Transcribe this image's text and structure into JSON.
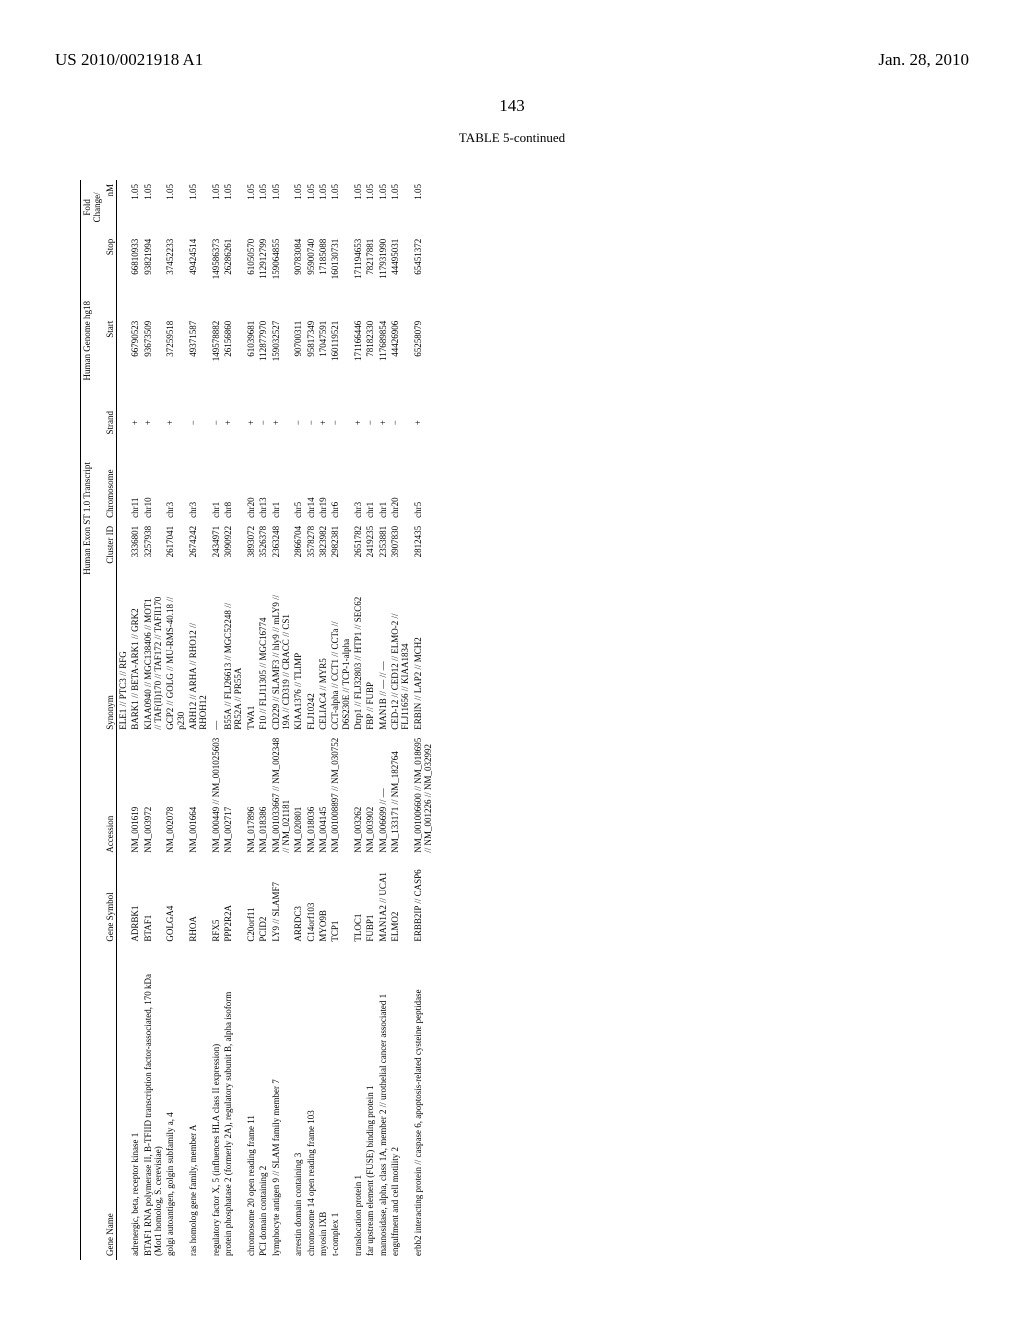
{
  "header": {
    "left": "US 2010/0021918 A1",
    "right": "Jan. 28, 2010"
  },
  "page_number": "143",
  "table_caption": "TABLE 5-continued",
  "columns": {
    "geneName": "Gene Name",
    "geneSymbol": "Gene Symbol",
    "accession": "Accession",
    "synonym": "Synonym",
    "clusterId": "Cluster ID",
    "chromosome": "Chromosome",
    "strand": "Strand",
    "start": "Start",
    "stop": "Stop",
    "foldChange": "nM"
  },
  "group_headers": {
    "human": "Human Exon ST 1.0 Transcript",
    "genome": "Human Genome hg18",
    "fold": "Fold Change/"
  },
  "rows": [
    {
      "geneName": "",
      "geneSymbol": "",
      "accession": "",
      "synonym": "ELE1 // PTC3 // RFG",
      "clusterId": "",
      "chromosome": "",
      "strand": "",
      "start": "",
      "stop": "",
      "foldChange": ""
    },
    {
      "geneName": "adrenergic, beta, receptor kinase 1",
      "geneSymbol": "ADRBK1",
      "accession": "NM_001619",
      "synonym": "BARK1 // BETA-ARK1 // GRK2",
      "clusterId": "3336801",
      "chromosome": "chr11",
      "strand": "+",
      "start": "66790523",
      "stop": "66810933",
      "foldChange": "1.05"
    },
    {
      "geneName": "BTAF1 RNA polymerase II, B-TFIID transcription factor-associated, 170 kDa (Mot1 homolog, S. cerevisiae)",
      "geneSymbol": "BTAF1",
      "accession": "NM_003972",
      "synonym": "KIAA0940 // MGC138406 // MOT1 // TAF(II)170 // TAF172 // TAFII170",
      "clusterId": "3257938",
      "chromosome": "chr10",
      "strand": "+",
      "start": "93673509",
      "stop": "93821994",
      "foldChange": "1.05"
    },
    {
      "geneName": "golgi autoantigen, golgin subfamily a, 4",
      "geneSymbol": "GOLGA4",
      "accession": "NM_002078",
      "synonym": "GCP2 // GOLG // MU-RMS-40.18 // p230",
      "clusterId": "2617041",
      "chromosome": "chr3",
      "strand": "+",
      "start": "37259518",
      "stop": "37452233",
      "foldChange": "1.05"
    },
    {
      "geneName": "ras homolog gene family, member A",
      "geneSymbol": "RHOA",
      "accession": "NM_001664",
      "synonym": "ARH12 // ARHA // RHO12 // RHOH12",
      "clusterId": "2674242",
      "chromosome": "chr3",
      "strand": "−",
      "start": "49371587",
      "stop": "49424514",
      "foldChange": "1.05"
    },
    {
      "geneName": "regulatory factor X, 5 (influences HLA class II expression)",
      "geneSymbol": "RFX5",
      "accession": "NM_000449 // NM_001025603",
      "synonym": "—",
      "clusterId": "2434971",
      "chromosome": "chr1",
      "strand": "−",
      "start": "149578882",
      "stop": "149586373",
      "foldChange": "1.05"
    },
    {
      "geneName": "protein phosphatase 2 (formerly 2A), regulatory subunit B, alpha isoform",
      "geneSymbol": "PPP2R2A",
      "accession": "NM_002717",
      "synonym": "B55A // FLJ26613 // MGC52248 // PR52A // PR55A",
      "clusterId": "3090922",
      "chromosome": "chr8",
      "strand": "+",
      "start": "26156860",
      "stop": "26286261",
      "foldChange": "1.05"
    },
    {
      "geneName": "chromosome 20 open reading frame 11",
      "geneSymbol": "C20orf11",
      "accession": "NM_017896",
      "synonym": "TWA1",
      "clusterId": "3893072",
      "chromosome": "chr20",
      "strand": "+",
      "start": "61039681",
      "stop": "61050570",
      "foldChange": "1.05"
    },
    {
      "geneName": "PCI domain containing 2",
      "geneSymbol": "PCID2",
      "accession": "NM_018386",
      "synonym": "F10 // FLJ11305 // MGC16774",
      "clusterId": "3526378",
      "chromosome": "chr13",
      "strand": "−",
      "start": "112877970",
      "stop": "112912799",
      "foldChange": "1.05"
    },
    {
      "geneName": "lymphocyte antigen 9 // SLAM family member 7",
      "geneSymbol": "LY9 // SLAMF7",
      "accession": "NM_001033667 // NM_002348 // NM_021181",
      "synonym": "CD229 // SLAMF3 // hly9 // mLY9 // 19A // CD319 // CRACC // CS1",
      "clusterId": "2363248",
      "chromosome": "chr1",
      "strand": "+",
      "start": "159032527",
      "stop": "159064855",
      "foldChange": "1.05"
    },
    {
      "geneName": "arrestin domain containing 3",
      "geneSymbol": "ARRDC3",
      "accession": "NM_020801",
      "synonym": "KIAA1376 // TLIMP",
      "clusterId": "2866704",
      "chromosome": "chr5",
      "strand": "−",
      "start": "90700311",
      "stop": "90783084",
      "foldChange": "1.05"
    },
    {
      "geneName": "chromosome 14 open reading frame 103",
      "geneSymbol": "C14orf103",
      "accession": "NM_018036",
      "synonym": "FLJ10242",
      "clusterId": "3578278",
      "chromosome": "chr14",
      "strand": "−",
      "start": "95817349",
      "stop": "95900740",
      "foldChange": "1.05"
    },
    {
      "geneName": "myosin IXB",
      "geneSymbol": "MYO9B",
      "accession": "NM_004145",
      "synonym": "CELIAC4 // MYR5",
      "clusterId": "3823982",
      "chromosome": "chr19",
      "strand": "+",
      "start": "17047591",
      "stop": "17185088",
      "foldChange": "1.05"
    },
    {
      "geneName": "t-complex 1",
      "geneSymbol": "TCP1",
      "accession": "NM_001008897 // NM_030752",
      "synonym": "CCT-alpha // CCT1 // CCTa // D6S230E // TCP-1-alpha",
      "clusterId": "2982381",
      "chromosome": "chr6",
      "strand": "−",
      "start": "160119521",
      "stop": "160130731",
      "foldChange": "1.05"
    },
    {
      "geneName": "translocation protein 1",
      "geneSymbol": "TLOC1",
      "accession": "NM_003262",
      "synonym": "Dtrp1 // FLJ32803 // HTP1 // SEC62",
      "clusterId": "2651782",
      "chromosome": "chr3",
      "strand": "+",
      "start": "171166446",
      "stop": "171194653",
      "foldChange": "1.05"
    },
    {
      "geneName": "far upstream element (FUSE) binding protein 1",
      "geneSymbol": "FUBP1",
      "accession": "NM_003902",
      "synonym": "FBP // FUBP",
      "clusterId": "2419235",
      "chromosome": "chr1",
      "strand": "−",
      "start": "78182330",
      "stop": "78217881",
      "foldChange": "1.05"
    },
    {
      "geneName": "mannosidase, alpha, class 1A, member 2 // urothelial cancer associated 1",
      "geneSymbol": "MAN1A2 // UCA1",
      "accession": "NM_006699 // —",
      "synonym": "MAN1B // — // —",
      "clusterId": "2353881",
      "chromosome": "chr1",
      "strand": "+",
      "start": "117689854",
      "stop": "117931990",
      "foldChange": "1.05"
    },
    {
      "geneName": "engulfment and cell motility 2",
      "geneSymbol": "ELMO2",
      "accession": "NM_133171 // NM_182764",
      "synonym": "CED-12 // CED12 // ELMO-2 // FLJ11656 // KIAA1834",
      "clusterId": "3907830",
      "chromosome": "chr20",
      "strand": "−",
      "start": "44426906",
      "stop": "44495031",
      "foldChange": "1.05"
    },
    {
      "geneName": "erbb2 interacting protein // caspase 6, apoptosis-related cysteine peptidase",
      "geneSymbol": "ERBB2IP // CASP6",
      "accession": "NM_001006600 // NM_018695 // NM_001226 // NM_032992",
      "synonym": "ERBIN // LAP2 // MCH2",
      "clusterId": "2812435",
      "chromosome": "chr5",
      "strand": "+",
      "start": "65258079",
      "stop": "65451372",
      "foldChange": "1.05"
    }
  ]
}
